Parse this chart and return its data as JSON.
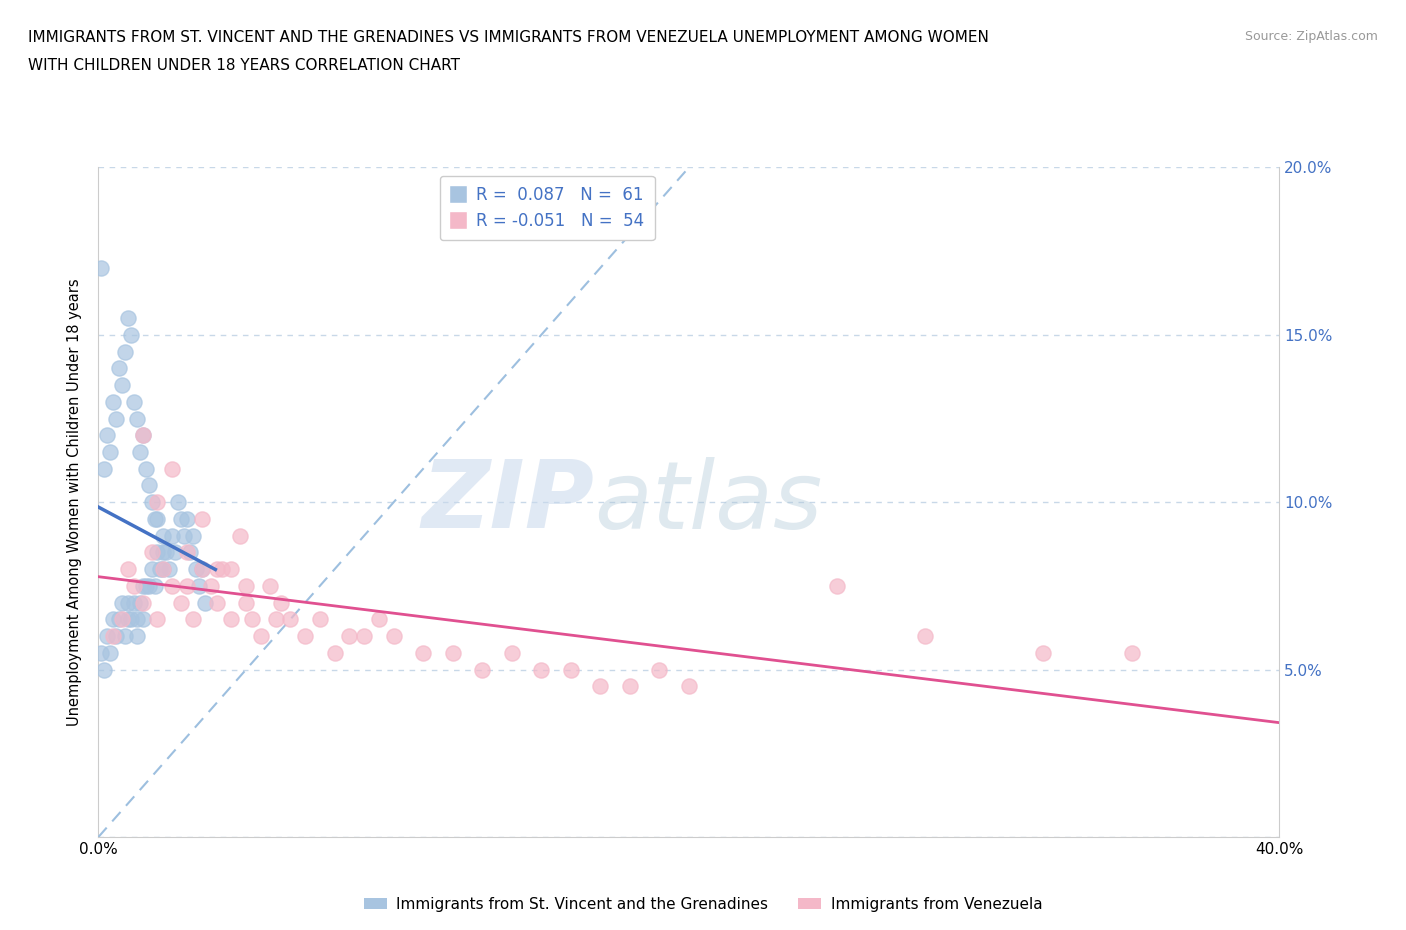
{
  "title_line1": "IMMIGRANTS FROM ST. VINCENT AND THE GRENADINES VS IMMIGRANTS FROM VENEZUELA UNEMPLOYMENT AMONG WOMEN",
  "title_line2": "WITH CHILDREN UNDER 18 YEARS CORRELATION CHART",
  "source_text": "Source: ZipAtlas.com",
  "ylabel": "Unemployment Among Women with Children Under 18 years",
  "xlim": [
    0.0,
    0.4
  ],
  "ylim": [
    0.0,
    0.2
  ],
  "color_blue": "#a8c4e0",
  "color_pink": "#f4b8c8",
  "color_blue_line": "#4472c4",
  "color_pink_line": "#e05090",
  "color_diag": "#a8c4e0",
  "legend_label1": "R =  0.087   N =  61",
  "legend_label2": "R = -0.051   N =  54",
  "watermark_zip": "ZIP",
  "watermark_atlas": "atlas",
  "series1_x": [
    0.001,
    0.002,
    0.003,
    0.004,
    0.005,
    0.006,
    0.007,
    0.008,
    0.009,
    0.01,
    0.01,
    0.011,
    0.012,
    0.013,
    0.013,
    0.014,
    0.015,
    0.015,
    0.016,
    0.017,
    0.018,
    0.019,
    0.02,
    0.021,
    0.022,
    0.022,
    0.023,
    0.024,
    0.025,
    0.026,
    0.027,
    0.028,
    0.029,
    0.03,
    0.031,
    0.032,
    0.033,
    0.034,
    0.035,
    0.036,
    0.002,
    0.003,
    0.004,
    0.005,
    0.006,
    0.007,
    0.008,
    0.009,
    0.01,
    0.011,
    0.012,
    0.013,
    0.014,
    0.015,
    0.016,
    0.017,
    0.018,
    0.019,
    0.02,
    0.022,
    0.001
  ],
  "series1_y": [
    0.055,
    0.05,
    0.06,
    0.055,
    0.065,
    0.06,
    0.065,
    0.07,
    0.06,
    0.065,
    0.07,
    0.065,
    0.07,
    0.065,
    0.06,
    0.07,
    0.075,
    0.065,
    0.075,
    0.075,
    0.08,
    0.075,
    0.085,
    0.08,
    0.085,
    0.09,
    0.085,
    0.08,
    0.09,
    0.085,
    0.1,
    0.095,
    0.09,
    0.095,
    0.085,
    0.09,
    0.08,
    0.075,
    0.08,
    0.07,
    0.11,
    0.12,
    0.115,
    0.13,
    0.125,
    0.14,
    0.135,
    0.145,
    0.155,
    0.15,
    0.13,
    0.125,
    0.115,
    0.12,
    0.11,
    0.105,
    0.1,
    0.095,
    0.095,
    0.08,
    0.17
  ],
  "series2_x": [
    0.005,
    0.008,
    0.01,
    0.012,
    0.015,
    0.018,
    0.02,
    0.022,
    0.025,
    0.028,
    0.03,
    0.032,
    0.035,
    0.038,
    0.04,
    0.042,
    0.045,
    0.048,
    0.05,
    0.052,
    0.055,
    0.058,
    0.06,
    0.062,
    0.065,
    0.07,
    0.075,
    0.08,
    0.085,
    0.09,
    0.095,
    0.1,
    0.11,
    0.12,
    0.13,
    0.14,
    0.15,
    0.16,
    0.17,
    0.18,
    0.19,
    0.2,
    0.25,
    0.28,
    0.32,
    0.35,
    0.015,
    0.02,
    0.025,
    0.03,
    0.035,
    0.04,
    0.045,
    0.05
  ],
  "series2_y": [
    0.06,
    0.065,
    0.08,
    0.075,
    0.07,
    0.085,
    0.065,
    0.08,
    0.075,
    0.07,
    0.075,
    0.065,
    0.08,
    0.075,
    0.07,
    0.08,
    0.065,
    0.09,
    0.07,
    0.065,
    0.06,
    0.075,
    0.065,
    0.07,
    0.065,
    0.06,
    0.065,
    0.055,
    0.06,
    0.06,
    0.065,
    0.06,
    0.055,
    0.055,
    0.05,
    0.055,
    0.05,
    0.05,
    0.045,
    0.045,
    0.05,
    0.045,
    0.075,
    0.06,
    0.055,
    0.055,
    0.12,
    0.1,
    0.11,
    0.085,
    0.095,
    0.08,
    0.08,
    0.075
  ]
}
